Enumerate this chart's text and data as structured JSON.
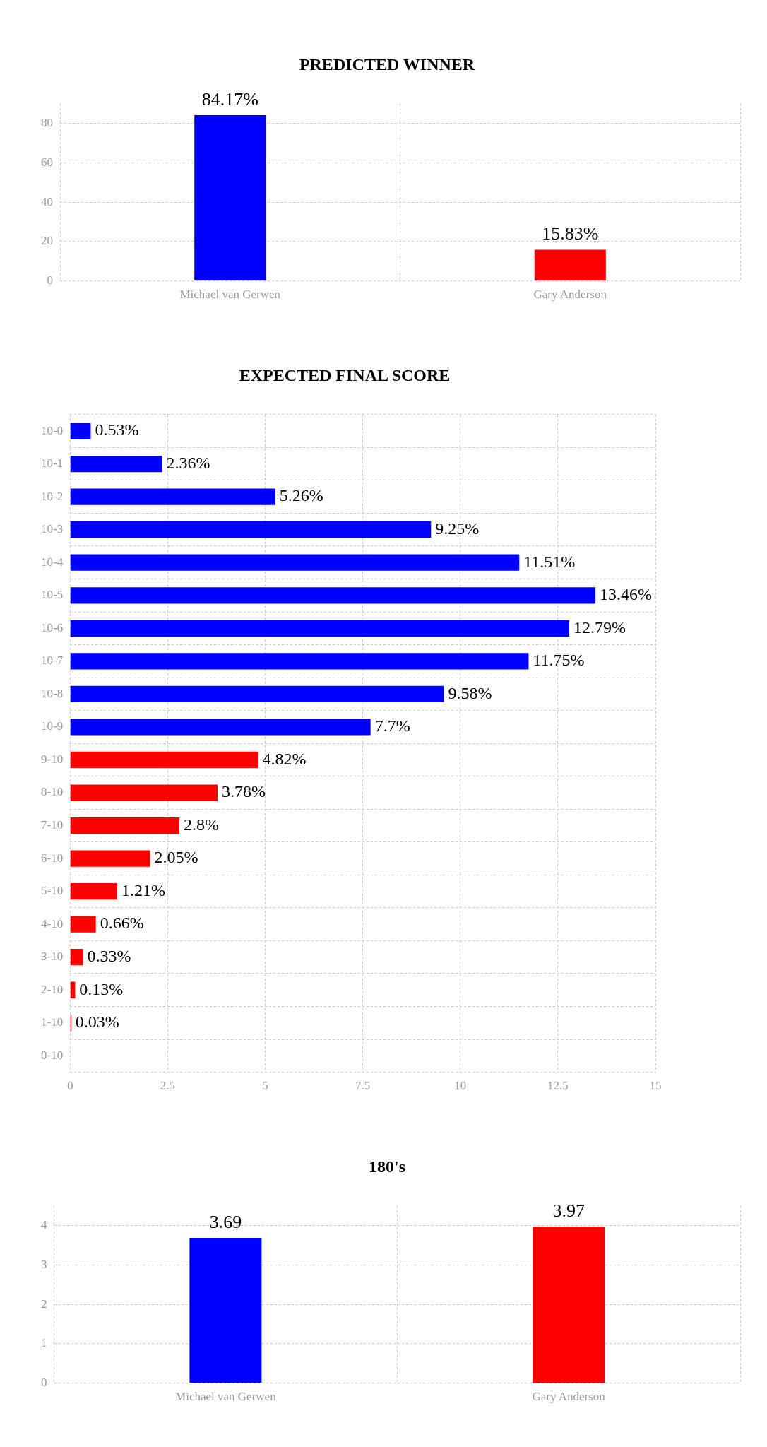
{
  "chart_data": [
    {
      "type": "bar",
      "title": "PREDICTED WINNER",
      "categories": [
        "Michael van Gerwen",
        "Gary Anderson"
      ],
      "values": [
        84.17,
        15.83
      ],
      "colors": [
        "#0000ff",
        "#ff0000"
      ],
      "value_labels": [
        "84.17%",
        "15.83%"
      ],
      "ylim": [
        0,
        90
      ],
      "yticks": [
        0,
        20,
        40,
        60,
        80
      ],
      "grid": true
    },
    {
      "type": "bar",
      "orientation": "horizontal",
      "title": "EXPECTED FINAL SCORE",
      "categories": [
        "10-0",
        "10-1",
        "10-2",
        "10-3",
        "10-4",
        "10-5",
        "10-6",
        "10-7",
        "10-8",
        "10-9",
        "9-10",
        "8-10",
        "7-10",
        "6-10",
        "5-10",
        "4-10",
        "3-10",
        "2-10",
        "1-10",
        "0-10"
      ],
      "values": [
        0.53,
        2.36,
        5.26,
        9.25,
        11.51,
        13.46,
        12.79,
        11.75,
        9.58,
        7.7,
        4.82,
        3.78,
        2.8,
        2.05,
        1.21,
        0.66,
        0.33,
        0.13,
        0.03,
        null
      ],
      "colors": [
        "#0000ff",
        "#0000ff",
        "#0000ff",
        "#0000ff",
        "#0000ff",
        "#0000ff",
        "#0000ff",
        "#0000ff",
        "#0000ff",
        "#0000ff",
        "#ff0000",
        "#ff0000",
        "#ff0000",
        "#ff0000",
        "#ff0000",
        "#ff0000",
        "#ff0000",
        "#ff0000",
        "#ff0000",
        "#ff0000"
      ],
      "value_labels": [
        "0.53%",
        "2.36%",
        "5.26%",
        "9.25%",
        "11.51%",
        "13.46%",
        "12.79%",
        "11.75%",
        "9.58%",
        "7.7%",
        "4.82%",
        "3.78%",
        "2.8%",
        "2.05%",
        "1.21%",
        "0.66%",
        "0.33%",
        "0.13%",
        "0.03%",
        null
      ],
      "xlim": [
        0,
        15
      ],
      "xticks": [
        0,
        2.5,
        5,
        7.5,
        10,
        12.5,
        15
      ],
      "grid": true
    },
    {
      "type": "bar",
      "title": "180's",
      "categories": [
        "Michael van Gerwen",
        "Gary Anderson"
      ],
      "values": [
        3.69,
        3.97
      ],
      "colors": [
        "#0000ff",
        "#ff0000"
      ],
      "value_labels": [
        "3.69",
        "3.97"
      ],
      "ylim": [
        0,
        4.5
      ],
      "yticks": [
        0,
        1,
        2,
        3,
        4
      ],
      "grid": true
    }
  ]
}
